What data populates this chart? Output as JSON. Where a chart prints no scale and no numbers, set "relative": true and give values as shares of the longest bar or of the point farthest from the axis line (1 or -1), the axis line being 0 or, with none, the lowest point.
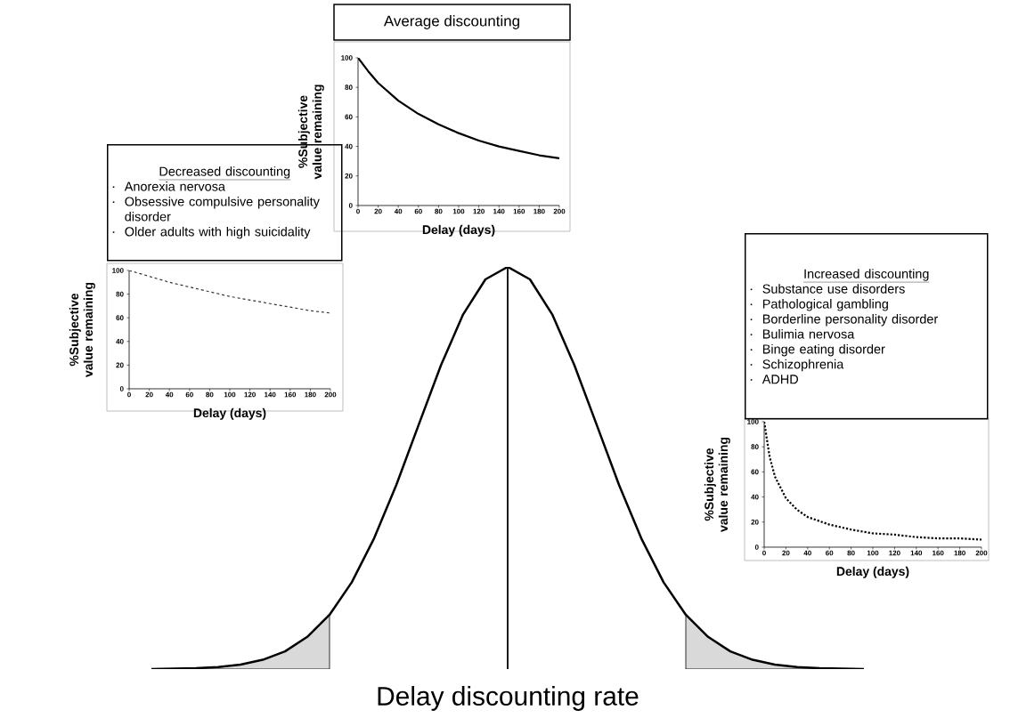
{
  "chart_data": [
    {
      "type": "line",
      "relative": true,
      "xlabel": "Delay discounting rate",
      "categories": [
        null,
        null,
        null,
        null,
        null,
        null,
        null,
        null,
        null,
        null,
        null,
        null,
        null,
        null,
        null,
        null,
        null,
        null,
        null,
        null,
        null,
        null,
        null,
        null,
        null,
        null,
        null,
        null,
        null,
        null,
        null,
        null,
        null
      ],
      "series": [
        {
          "type": "area",
          "color": "#d9d9d9",
          "values": [
            0,
            0.001,
            0.002,
            0.005,
            0.011,
            0.023,
            0.044,
            0.08,
            0.135,
            null,
            null,
            null,
            null,
            null,
            null,
            null,
            null,
            null,
            null,
            null,
            null,
            null,
            null,
            null,
            null,
            null,
            null,
            null,
            null,
            null,
            null,
            null,
            null
          ]
        },
        {
          "type": "area",
          "color": "#d9d9d9",
          "values": [
            null,
            null,
            null,
            null,
            null,
            null,
            null,
            null,
            null,
            null,
            null,
            null,
            null,
            null,
            null,
            null,
            null,
            null,
            null,
            null,
            null,
            null,
            null,
            null,
            0.135,
            0.08,
            0.044,
            0.023,
            0.011,
            0.005,
            0.002,
            0.001,
            0
          ]
        },
        {
          "type": "line",
          "color": "#000000",
          "values": [
            0,
            0.001,
            0.002,
            0.005,
            0.011,
            0.023,
            0.044,
            0.08,
            0.135,
            0.216,
            0.325,
            0.458,
            0.607,
            0.755,
            0.882,
            0.969,
            1,
            0.969,
            0.882,
            0.755,
            0.607,
            0.458,
            0.325,
            0.216,
            0.135,
            0.08,
            0.044,
            0.023,
            0.011,
            0.005,
            0.002,
            0.001,
            0
          ]
        }
      ]
    },
    {
      "type": "line",
      "title": "Average discounting",
      "xlabel": "Delay (days)",
      "ylabel": "%Subjective value remaining",
      "line_style": "solid",
      "xlim": [
        0,
        200
      ],
      "ylim": [
        0,
        100
      ],
      "xticks": [
        0,
        20,
        40,
        60,
        80,
        100,
        120,
        140,
        160,
        180,
        200
      ],
      "yticks": [
        0,
        20,
        40,
        60,
        80,
        100
      ],
      "series": [
        {
          "color": "#000000",
          "x": [
            0,
            10,
            20,
            40,
            60,
            80,
            100,
            120,
            140,
            160,
            180,
            200
          ],
          "values": [
            100,
            91,
            83,
            71,
            62,
            55,
            49,
            44,
            40,
            37,
            34,
            32
          ]
        }
      ]
    },
    {
      "type": "line",
      "title": "Decreased discounting",
      "annotations": [
        "Anorexia nervosa",
        "Obsessive compulsive personality disorder",
        "Older adults with high suicidality"
      ],
      "xlabel": "Delay (days)",
      "ylabel": "%Subjective value remaining",
      "line_style": "dashed",
      "xlim": [
        0,
        200
      ],
      "ylim": [
        0,
        100
      ],
      "xticks": [
        0,
        20,
        40,
        60,
        80,
        100,
        120,
        140,
        160,
        180,
        200
      ],
      "yticks": [
        0,
        20,
        40,
        60,
        80,
        100
      ],
      "series": [
        {
          "color": "#333333",
          "x": [
            0,
            20,
            40,
            60,
            80,
            100,
            120,
            140,
            160,
            180,
            200
          ],
          "values": [
            100,
            95,
            90,
            86,
            82,
            78,
            75,
            72,
            69,
            66,
            64
          ]
        }
      ]
    },
    {
      "type": "line",
      "title": "Increased discounting",
      "annotations": [
        "Substance use disorders",
        "Pathological gambling",
        "Borderline personality disorder",
        "Bulimia nervosa",
        "Binge eating disorder",
        "Schizophrenia",
        "ADHD"
      ],
      "xlabel": "Delay (days)",
      "ylabel": "%Subjective value remaining",
      "line_style": "dotted",
      "xlim": [
        0,
        200
      ],
      "ylim": [
        0,
        100
      ],
      "xticks": [
        0,
        20,
        40,
        60,
        80,
        100,
        120,
        140,
        160,
        180,
        200
      ],
      "yticks": [
        0,
        20,
        40,
        60,
        80,
        100
      ],
      "series": [
        {
          "color": "#000000",
          "x": [
            0,
            5,
            10,
            20,
            30,
            40,
            60,
            80,
            100,
            120,
            140,
            160,
            180,
            200
          ],
          "values": [
            100,
            72,
            56,
            39,
            30,
            24,
            18,
            14,
            11,
            10,
            8,
            7,
            7,
            6
          ]
        }
      ]
    }
  ]
}
